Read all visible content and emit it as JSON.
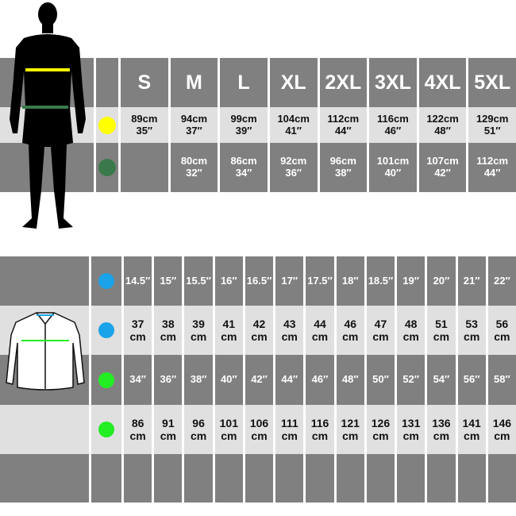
{
  "colors": {
    "dark": "#808080",
    "light": "#e0e0e0",
    "chest_marker": "#ffff00",
    "waist_marker": "#3a7a4a",
    "collar_marker": "#1aa3e8",
    "shirt_chest_marker": "#22ee22"
  },
  "top_table": {
    "sizes": [
      "S",
      "M",
      "L",
      "XL",
      "2XL",
      "3XL",
      "4XL",
      "5XL"
    ],
    "rows": [
      {
        "marker": "chest_marker",
        "values": [
          "89cm\n35″",
          "94cm\n37″",
          "99cm\n39″",
          "104cm\n41″",
          "112cm\n44″",
          "116cm\n46″",
          "122cm\n48″",
          "129cm\n51″"
        ]
      },
      {
        "marker": "waist_marker",
        "values": [
          "",
          "80cm\n32″",
          "86cm\n34″",
          "92cm\n36″",
          "96cm\n38″",
          "101cm\n40″",
          "107cm\n42″",
          "112cm\n44″"
        ]
      }
    ]
  },
  "bottom_table": {
    "rows": [
      {
        "marker": "collar_marker",
        "values": [
          "14.5″",
          "15″",
          "15.5″",
          "16″",
          "16.5″",
          "17″",
          "17.5″",
          "18″",
          "18.5″",
          "19″",
          "20″",
          "21″",
          "22″"
        ]
      },
      {
        "marker": "collar_marker",
        "values": [
          "37\ncm",
          "38\ncm",
          "39\ncm",
          "41\ncm",
          "42\ncm",
          "43\ncm",
          "44\ncm",
          "46\ncm",
          "47\ncm",
          "48\ncm",
          "51\ncm",
          "53\ncm",
          "56\ncm"
        ]
      },
      {
        "marker": "shirt_chest_marker",
        "values": [
          "34″",
          "36″",
          "38″",
          "40″",
          "42″",
          "44″",
          "46″",
          "48″",
          "50″",
          "52″",
          "54″",
          "56″",
          "58″"
        ]
      },
      {
        "marker": "shirt_chest_marker",
        "values": [
          "86\ncm",
          "91\ncm",
          "96\ncm",
          "101\ncm",
          "106\ncm",
          "111\ncm",
          "116\ncm",
          "121\ncm",
          "126\ncm",
          "131\ncm",
          "136\ncm",
          "141\ncm",
          "146\ncm"
        ]
      },
      {
        "marker": null,
        "values": [
          "",
          "",
          "",
          "",
          "",
          "",
          "",
          "",
          "",
          "",
          "",
          "",
          ""
        ]
      }
    ]
  }
}
